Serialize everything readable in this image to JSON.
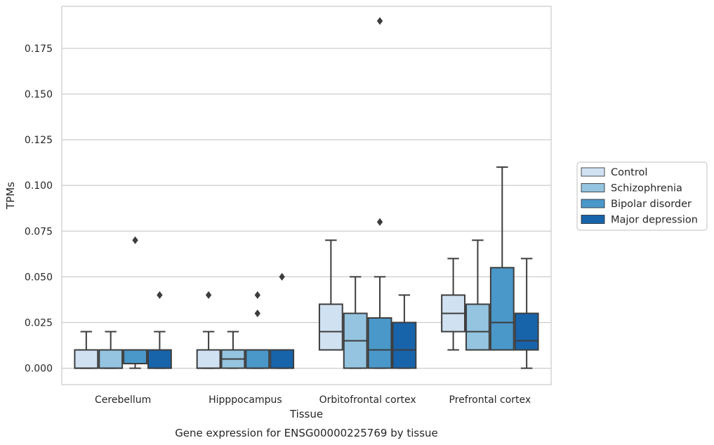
{
  "chart_data": {
    "type": "box",
    "title": "",
    "caption": "Gene expression for ENSG00000225769 by tissue",
    "xlabel": "Tissue",
    "ylabel": "TPMs",
    "ylim": [
      -0.009,
      0.198
    ],
    "yticks": [
      "0.000",
      "0.025",
      "0.050",
      "0.075",
      "0.100",
      "0.125",
      "0.150",
      "0.175"
    ],
    "yticks_values": [
      0,
      0.025,
      0.05,
      0.075,
      0.1,
      0.125,
      0.15,
      0.175
    ],
    "grid": true,
    "legend_position": "right",
    "categories": [
      "Cerebellum",
      "Hipppocampus",
      "Orbitofrontal cortex",
      "Prefrontal cortex"
    ],
    "series": [
      {
        "name": "Control",
        "color": "#d0e1f2",
        "boxes": [
          {
            "min": 0,
            "q1": 0,
            "median": 0,
            "q3": 0.01,
            "max": 0.02,
            "outliers": []
          },
          {
            "min": 0,
            "q1": 0,
            "median": 0,
            "q3": 0.01,
            "max": 0.02,
            "outliers": [
              0.04
            ]
          },
          {
            "min": 0.01,
            "q1": 0.01,
            "median": 0.02,
            "q3": 0.035,
            "max": 0.07,
            "outliers": []
          },
          {
            "min": 0.01,
            "q1": 0.02,
            "median": 0.03,
            "q3": 0.04,
            "max": 0.06,
            "outliers": []
          }
        ]
      },
      {
        "name": "Schizophrenia",
        "color": "#94c4df",
        "boxes": [
          {
            "min": 0,
            "q1": 0,
            "median": 0,
            "q3": 0.01,
            "max": 0.02,
            "outliers": []
          },
          {
            "min": 0,
            "q1": 0,
            "median": 0.005,
            "q3": 0.01,
            "max": 0.02,
            "outliers": []
          },
          {
            "min": 0,
            "q1": 0,
            "median": 0.015,
            "q3": 0.03,
            "max": 0.05,
            "outliers": []
          },
          {
            "min": 0.01,
            "q1": 0.01,
            "median": 0.02,
            "q3": 0.035,
            "max": 0.07,
            "outliers": []
          }
        ]
      },
      {
        "name": "Bipolar disorder",
        "color": "#4a98c9",
        "boxes": [
          {
            "min": 0,
            "q1": 0.0025,
            "median": 0.0025,
            "q3": 0.01,
            "max": 0.01,
            "outliers": [
              0.07
            ]
          },
          {
            "min": 0,
            "q1": 0,
            "median": 0,
            "q3": 0.01,
            "max": 0.01,
            "outliers": [
              0.03,
              0.04
            ]
          },
          {
            "min": 0,
            "q1": 0,
            "median": 0.01,
            "q3": 0.0275,
            "max": 0.05,
            "outliers": [
              0.08,
              0.19
            ]
          },
          {
            "min": 0.01,
            "q1": 0.01,
            "median": 0.025,
            "q3": 0.055,
            "max": 0.11,
            "outliers": []
          }
        ]
      },
      {
        "name": "Major depression",
        "color": "#1764ab",
        "boxes": [
          {
            "min": 0,
            "q1": 0,
            "median": 0,
            "q3": 0.01,
            "max": 0.02,
            "outliers": [
              0.04
            ]
          },
          {
            "min": 0,
            "q1": 0,
            "median": 0,
            "q3": 0.01,
            "max": 0.01,
            "outliers": [
              0.05
            ]
          },
          {
            "min": 0,
            "q1": 0,
            "median": 0.01,
            "q3": 0.025,
            "max": 0.04,
            "outliers": []
          },
          {
            "min": 0,
            "q1": 0.01,
            "median": 0.015,
            "q3": 0.03,
            "max": 0.06,
            "outliers": []
          }
        ]
      }
    ]
  }
}
